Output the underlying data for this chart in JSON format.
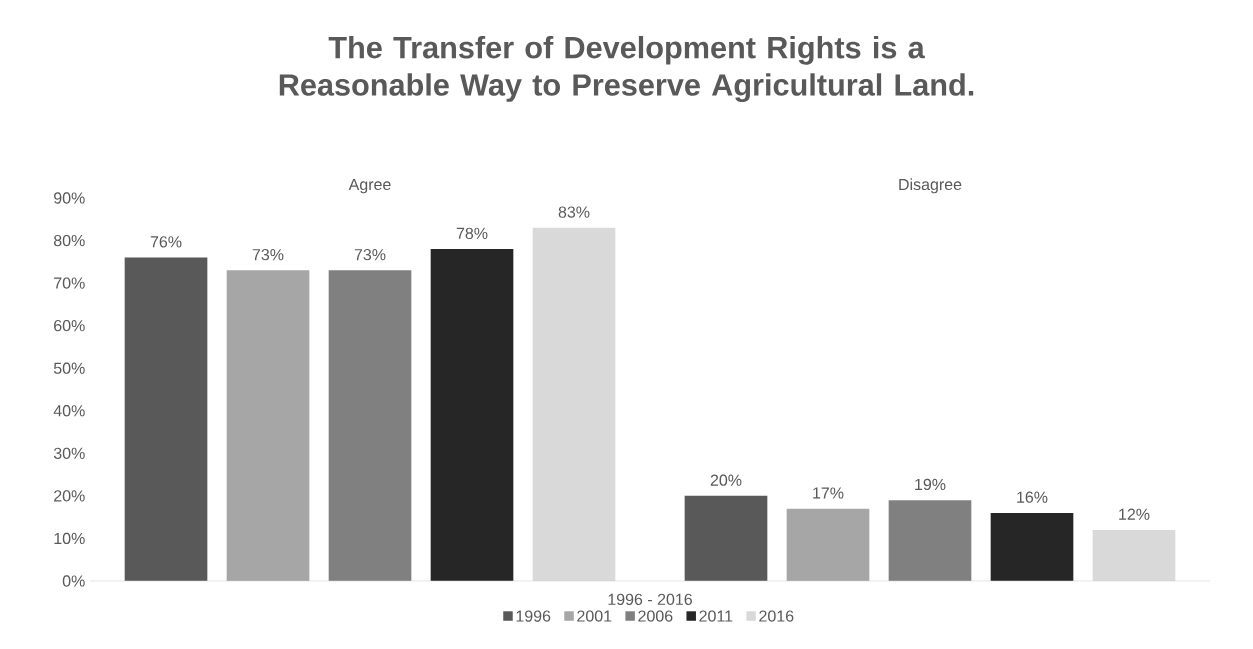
{
  "chart_data": {
    "type": "bar",
    "title": "The Transfer of Development Rights is a Reasonable Way to Preserve Agricultural Land.",
    "xlabel": "1996 - 2016",
    "categories": [
      "Agree",
      "Disagree"
    ],
    "series": [
      {
        "name": "1996",
        "color": "#595959",
        "values": [
          76,
          20
        ],
        "value_labels": [
          "76%",
          "20%"
        ]
      },
      {
        "name": "2001",
        "color": "#a6a6a6",
        "values": [
          73,
          17
        ],
        "value_labels": [
          "73%",
          "17%"
        ]
      },
      {
        "name": "2006",
        "color": "#808080",
        "values": [
          73,
          19
        ],
        "value_labels": [
          "73%",
          "19%"
        ]
      },
      {
        "name": "2011",
        "color": "#262626",
        "values": [
          78,
          16
        ],
        "value_labels": [
          "78%",
          "16%"
        ]
      },
      {
        "name": "2016",
        "color": "#d9d9d9",
        "values": [
          83,
          12
        ],
        "value_labels": [
          "83%",
          "12%"
        ]
      }
    ],
    "ylim": [
      0,
      90
    ],
    "yticks": [
      {
        "value": 0,
        "label": "0%"
      },
      {
        "value": 10,
        "label": "10%"
      },
      {
        "value": 20,
        "label": "20%"
      },
      {
        "value": 30,
        "label": "30%"
      },
      {
        "value": 40,
        "label": "40%"
      },
      {
        "value": 50,
        "label": "50%"
      },
      {
        "value": 60,
        "label": "60%"
      },
      {
        "value": 70,
        "label": "70%"
      },
      {
        "value": 80,
        "label": "80%"
      },
      {
        "value": 90,
        "label": "90%"
      }
    ],
    "grid": false,
    "legend": "bottom"
  }
}
